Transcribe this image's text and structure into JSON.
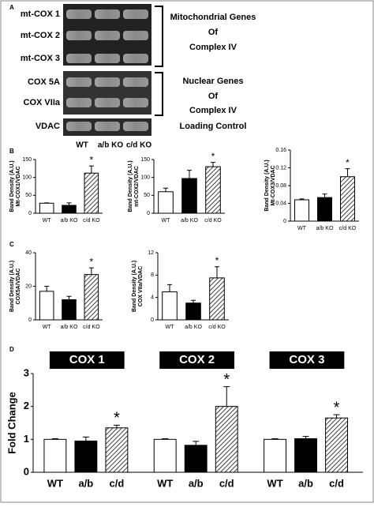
{
  "panel_a": {
    "label": "A",
    "bands": [
      "mt-COX 1",
      "mt-COX 2",
      "mt-COX 3",
      "COX 5A",
      "COX VIIa",
      "VDAC"
    ],
    "groups": [
      {
        "lines": [
          "Mitochondrial Genes",
          "Of",
          "Complex IV"
        ]
      },
      {
        "lines": [
          "Nuclear Genes",
          "Of",
          "Complex IV"
        ]
      },
      {
        "lines": [
          "Loading Control"
        ]
      }
    ],
    "lanes": [
      "WT",
      "a/b KO",
      "c/d KO"
    ]
  },
  "chart_data": [
    {
      "type": "bar",
      "panel": "B",
      "ylabel": [
        "Band Density (A.U.)",
        "Mt-COX1/VDAC"
      ],
      "categories": [
        "WT",
        "a/b KO",
        "c/d KO"
      ],
      "values": [
        28,
        22,
        112
      ],
      "errors": [
        1,
        7,
        20
      ],
      "fills": [
        "white",
        "black",
        "hatch"
      ],
      "significant": [
        false,
        false,
        true
      ],
      "marker": "*",
      "ylim": [
        0,
        150
      ],
      "yticks": [
        0,
        50,
        100,
        150
      ]
    },
    {
      "type": "bar",
      "ylabel": [
        "Band Density (A.U.)",
        "mt-COX2/VDAC"
      ],
      "categories": [
        "WT",
        "a/b KO",
        "c/d KO"
      ],
      "values": [
        60,
        97,
        130
      ],
      "errors": [
        10,
        23,
        12
      ],
      "fills": [
        "white",
        "black",
        "hatch"
      ],
      "significant": [
        false,
        false,
        true
      ],
      "marker": "*",
      "ylim": [
        0,
        150
      ],
      "yticks": [
        0,
        50,
        100,
        150
      ]
    },
    {
      "type": "bar",
      "ylabel": [
        "Band Density (A.U.)",
        "Mt-COX3/VDAC"
      ],
      "categories": [
        "WT",
        "a/b KO",
        "c/d KO"
      ],
      "values": [
        0.048,
        0.053,
        0.1
      ],
      "errors": [
        0.002,
        0.008,
        0.018
      ],
      "fills": [
        "white",
        "black",
        "hatch"
      ],
      "significant": [
        false,
        false,
        true
      ],
      "marker": "*",
      "ylim": [
        0,
        0.16
      ],
      "yticks": [
        0,
        0.04,
        0.08,
        0.12,
        0.16
      ]
    },
    {
      "type": "bar",
      "panel": "C",
      "ylabel": [
        "Band Density (A.U.)",
        "COX5A/VDAC"
      ],
      "categories": [
        "WT",
        "a/b KO",
        "c/d KO"
      ],
      "values": [
        17,
        12,
        27
      ],
      "errors": [
        3,
        2,
        4
      ],
      "fills": [
        "white",
        "black",
        "hatch"
      ],
      "significant": [
        false,
        false,
        true
      ],
      "marker": "*",
      "ylim": [
        0,
        40
      ],
      "yticks": [
        0,
        20,
        40
      ]
    },
    {
      "type": "bar",
      "ylabel": [
        "Band Density (A.U.)",
        "COX VIIa/VDAC"
      ],
      "categories": [
        "WT",
        "a/b KO",
        "c/d KO"
      ],
      "values": [
        5,
        3,
        7.5
      ],
      "errors": [
        1.3,
        0.5,
        2
      ],
      "fills": [
        "white",
        "black",
        "hatch"
      ],
      "significant": [
        false,
        false,
        true
      ],
      "marker": "*",
      "ylim": [
        0,
        12
      ],
      "yticks": [
        0,
        4,
        8,
        12
      ]
    },
    {
      "type": "grouped_bar",
      "panel": "D",
      "ylabel": [
        "Fold Change"
      ],
      "categories": [
        "WT",
        "a/b",
        "c/d"
      ],
      "fills": [
        "white",
        "black",
        "hatch"
      ],
      "marker": "*",
      "ylim": [
        0,
        3
      ],
      "yticks": [
        0,
        1,
        2,
        3
      ],
      "groups": [
        {
          "title": "COX 1",
          "values": [
            1,
            0.95,
            1.35
          ],
          "errors": [
            0.02,
            0.12,
            0.08
          ],
          "significant": [
            false,
            false,
            true
          ]
        },
        {
          "title": "COX 2",
          "values": [
            1,
            0.82,
            2.0
          ],
          "errors": [
            0.02,
            0.12,
            0.6
          ],
          "significant": [
            false,
            false,
            true
          ]
        },
        {
          "title": "COX 3",
          "values": [
            1,
            1.02,
            1.65
          ],
          "errors": [
            0.02,
            0.07,
            0.1
          ],
          "significant": [
            false,
            false,
            true
          ]
        }
      ]
    }
  ]
}
